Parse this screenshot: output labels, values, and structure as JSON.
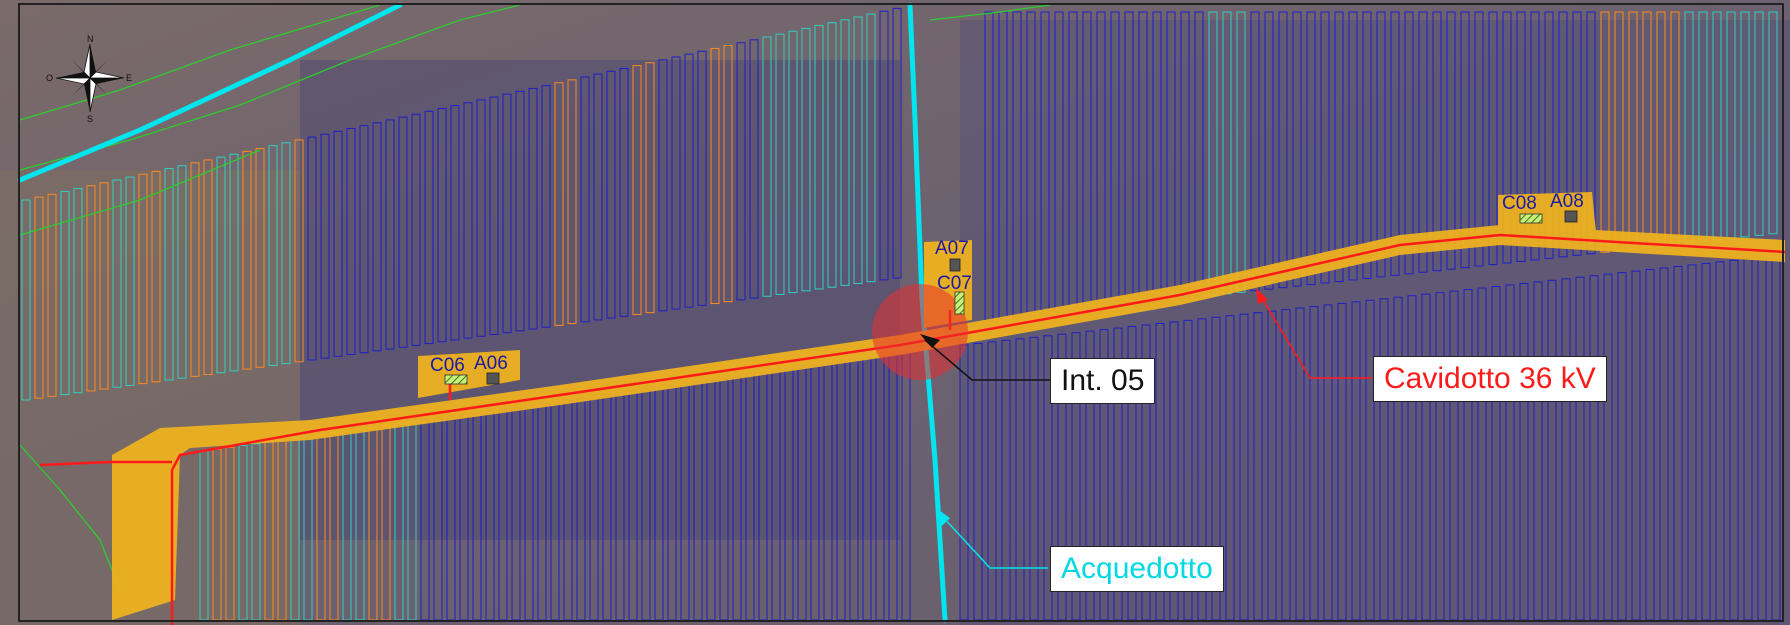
{
  "map": {
    "compass": {
      "north": "N",
      "south": "S",
      "east": "E",
      "west": "O"
    },
    "cabins": [
      {
        "label": "C06",
        "type": "C"
      },
      {
        "label": "A06",
        "type": "A"
      },
      {
        "label": "A07",
        "type": "A"
      },
      {
        "label": "C07",
        "type": "C"
      },
      {
        "label": "C08",
        "type": "C"
      },
      {
        "label": "A08",
        "type": "A"
      }
    ],
    "callouts": {
      "intersection": "Int. 05",
      "cable": "Cavidotto 36 kV",
      "aqueduct": "Acquedotto"
    },
    "colors": {
      "cable": "#ff1a1a",
      "aqueduct": "#00e5ee",
      "road": "#f2b41d",
      "panels_primary": "#1e1ec8",
      "panels_teal": "#2fd0c0",
      "panels_orange": "#ff8a1e",
      "boundary": "#2ecc2e",
      "intersection": "#e83030",
      "label_text": "#1a1aa8"
    }
  }
}
